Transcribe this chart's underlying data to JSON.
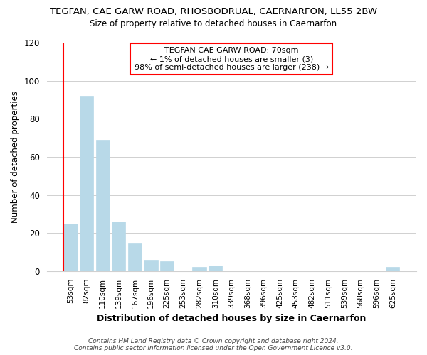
{
  "title": "TEGFAN, CAE GARW ROAD, RHOSBODRUAL, CAERNARFON, LL55 2BW",
  "subtitle": "Size of property relative to detached houses in Caernarfon",
  "xlabel": "Distribution of detached houses by size in Caernarfon",
  "ylabel": "Number of detached properties",
  "bar_labels": [
    "53sqm",
    "82sqm",
    "110sqm",
    "139sqm",
    "167sqm",
    "196sqm",
    "225sqm",
    "253sqm",
    "282sqm",
    "310sqm",
    "339sqm",
    "368sqm",
    "396sqm",
    "425sqm",
    "453sqm",
    "482sqm",
    "511sqm",
    "539sqm",
    "568sqm",
    "596sqm",
    "625sqm"
  ],
  "bar_values": [
    25,
    92,
    69,
    26,
    15,
    6,
    5,
    0,
    2,
    3,
    0,
    0,
    0,
    0,
    0,
    0,
    0,
    0,
    0,
    0,
    2
  ],
  "bar_color": "#b8d9e8",
  "ylim": [
    0,
    120
  ],
  "yticks": [
    0,
    20,
    40,
    60,
    80,
    100,
    120
  ],
  "annotation_title": "TEGFAN CAE GARW ROAD: 70sqm",
  "annotation_line1": "← 1% of detached houses are smaller (3)",
  "annotation_line2": "98% of semi-detached houses are larger (238) →",
  "red_line_bin": 0,
  "footer_line1": "Contains HM Land Registry data © Crown copyright and database right 2024.",
  "footer_line2": "Contains public sector information licensed under the Open Government Licence v3.0.",
  "background_color": "#ffffff",
  "grid_color": "#d0d0d0"
}
